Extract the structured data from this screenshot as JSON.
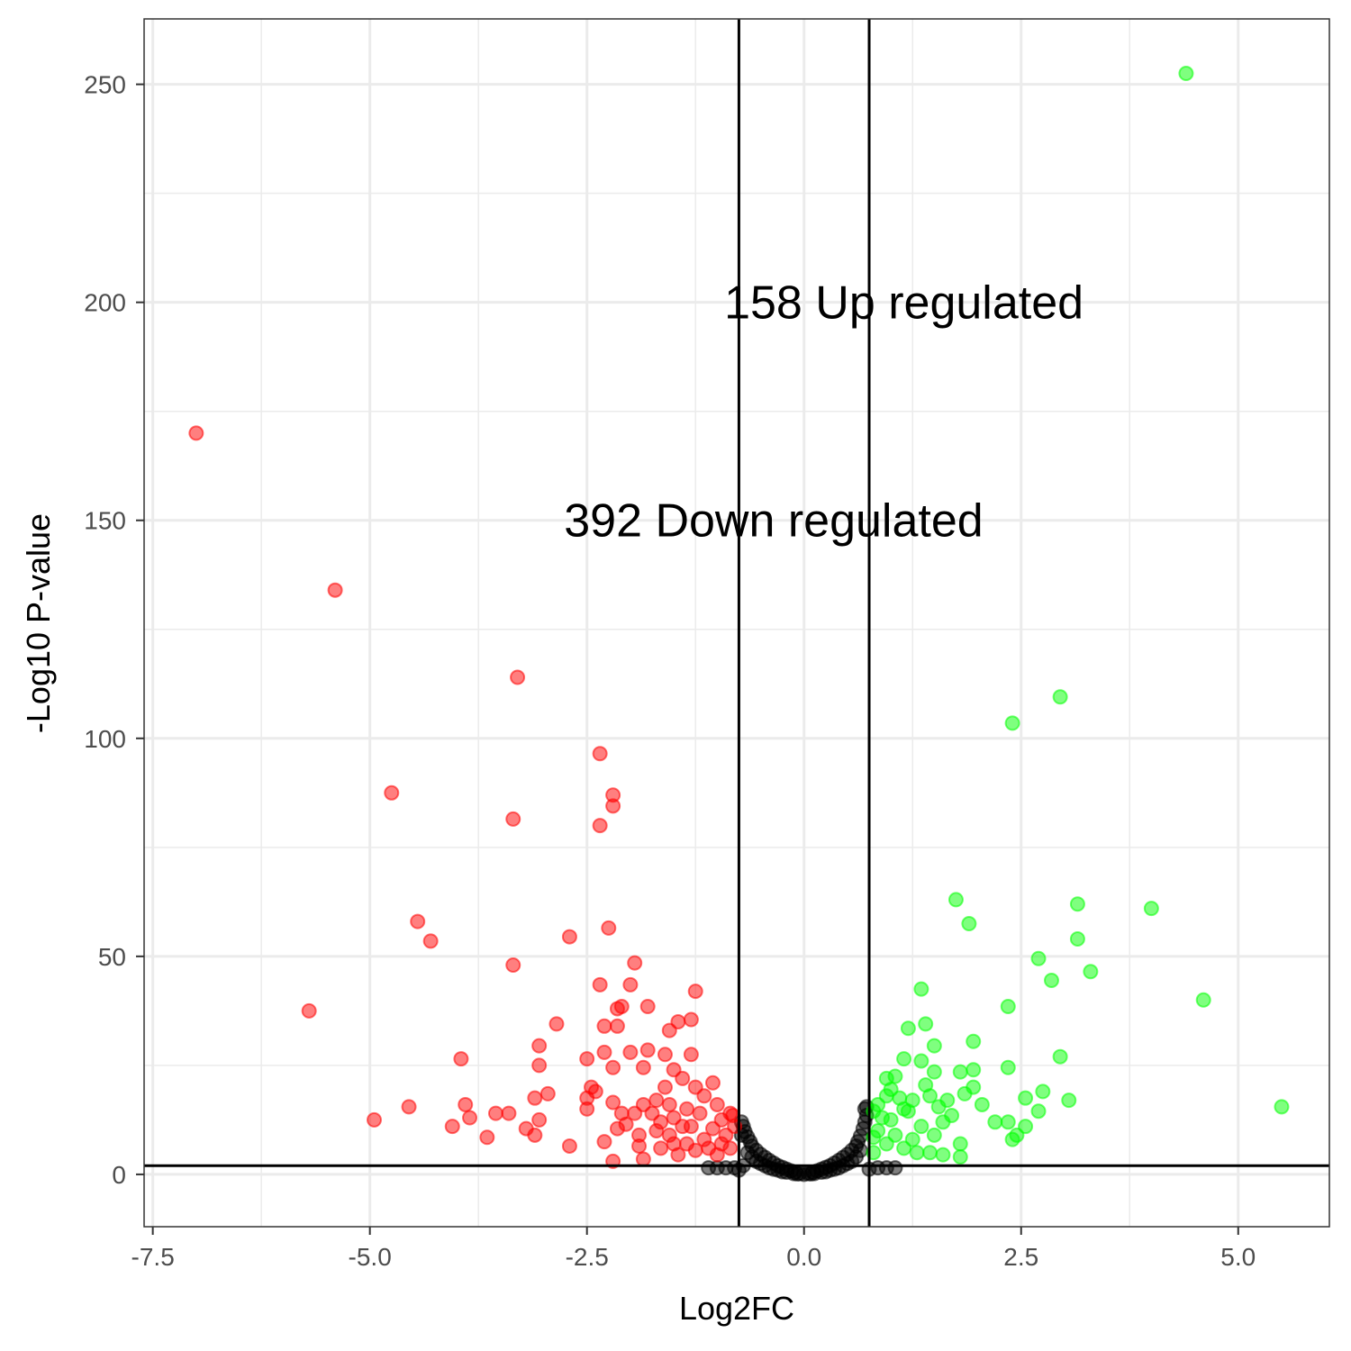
{
  "chart_data": {
    "type": "scatter",
    "title": "",
    "xlabel": "Log2FC",
    "ylabel": "-Log10 P-value",
    "xlim": [
      -7.6,
      6.05
    ],
    "ylim": [
      -12,
      265
    ],
    "x_ticks": [
      -7.5,
      -5.0,
      -2.5,
      0.0,
      2.5,
      5.0
    ],
    "x_tick_labels": [
      "-7.5",
      "-5.0",
      "-2.5",
      "0.0",
      "2.5",
      "5.0"
    ],
    "y_ticks": [
      0,
      50,
      100,
      150,
      200,
      250
    ],
    "y_tick_labels": [
      "0",
      "50",
      "100",
      "150",
      "200",
      "250"
    ],
    "grid": true,
    "legend": "none",
    "thresholds": {
      "x": [
        -0.75,
        0.75
      ],
      "y": [
        2
      ]
    },
    "colors": {
      "down": "#ff0000",
      "up": "#00ff00",
      "ns": "#000000",
      "lines": "#000000",
      "grid": "#ebebeb",
      "panel_border": "#333333"
    },
    "annotations": [
      {
        "text": "158 Up regulated",
        "x": 1.15,
        "y": 200
      },
      {
        "text": "392 Down regulated",
        "x": -0.35,
        "y": 150
      }
    ],
    "series": [
      {
        "group": "down",
        "points": [
          [
            -7.0,
            170
          ],
          [
            -5.4,
            134
          ],
          [
            -3.3,
            114
          ],
          [
            -4.75,
            87.5
          ],
          [
            -3.35,
            81.5
          ],
          [
            -2.35,
            96.5
          ],
          [
            -2.2,
            87
          ],
          [
            -2.2,
            84.5
          ],
          [
            -2.35,
            80
          ],
          [
            -4.45,
            58
          ],
          [
            -4.3,
            53.5
          ],
          [
            -2.25,
            56.5
          ],
          [
            -2.7,
            54.5
          ],
          [
            -3.35,
            48
          ],
          [
            -1.95,
            48.5
          ],
          [
            -2.35,
            43.5
          ],
          [
            -2.0,
            43.5
          ],
          [
            -1.25,
            42
          ],
          [
            -5.7,
            37.5
          ],
          [
            -2.15,
            38
          ],
          [
            -2.1,
            38.5
          ],
          [
            -1.8,
            38.5
          ],
          [
            -2.85,
            34.5
          ],
          [
            -2.3,
            34
          ],
          [
            -2.15,
            34
          ],
          [
            -1.3,
            35.5
          ],
          [
            -1.55,
            33
          ],
          [
            -1.45,
            35
          ],
          [
            -3.05,
            29.5
          ],
          [
            -3.05,
            25
          ],
          [
            -3.95,
            26.5
          ],
          [
            -2.5,
            26.5
          ],
          [
            -2.3,
            28
          ],
          [
            -2.0,
            28
          ],
          [
            -1.8,
            28.5
          ],
          [
            -1.6,
            27.5
          ],
          [
            -1.3,
            27.5
          ],
          [
            -2.2,
            24.5
          ],
          [
            -1.85,
            24.5
          ],
          [
            -1.5,
            24
          ],
          [
            -2.45,
            20
          ],
          [
            -2.4,
            19
          ],
          [
            -2.5,
            17.5
          ],
          [
            -2.5,
            15
          ],
          [
            -2.2,
            16.5
          ],
          [
            -2.1,
            14
          ],
          [
            -1.95,
            14
          ],
          [
            -1.85,
            16
          ],
          [
            -1.7,
            17
          ],
          [
            -2.95,
            18.5
          ],
          [
            -3.1,
            17.5
          ],
          [
            -3.9,
            16
          ],
          [
            -3.85,
            13
          ],
          [
            -4.55,
            15.5
          ],
          [
            -4.95,
            12.5
          ],
          [
            -4.05,
            11
          ],
          [
            -3.55,
            14
          ],
          [
            -3.4,
            14
          ],
          [
            -3.05,
            12.5
          ],
          [
            -3.2,
            10.5
          ],
          [
            -3.1,
            9
          ],
          [
            -3.65,
            8.5
          ],
          [
            -2.3,
            7.5
          ],
          [
            -2.7,
            6.5
          ],
          [
            -2.05,
            11.5
          ],
          [
            -2.15,
            10.5
          ],
          [
            -1.9,
            9
          ],
          [
            -1.9,
            6.5
          ],
          [
            -2.2,
            3
          ],
          [
            -1.65,
            6
          ],
          [
            -1.85,
            3.5
          ],
          [
            -1.45,
            4.5
          ],
          [
            -1.3,
            11
          ],
          [
            -1.05,
            21
          ],
          [
            -1.15,
            18
          ],
          [
            -1.35,
            15
          ],
          [
            -1.5,
            13
          ],
          [
            -1.4,
            11
          ],
          [
            -1.2,
            14
          ],
          [
            -1.05,
            10.5
          ],
          [
            -0.95,
            12.5
          ],
          [
            -0.9,
            9
          ],
          [
            -1.15,
            8
          ],
          [
            -1.35,
            7
          ],
          [
            -1.55,
            9
          ],
          [
            -1.65,
            12
          ],
          [
            -1.0,
            16
          ],
          [
            -0.85,
            14
          ],
          [
            -1.25,
            20
          ],
          [
            -1.4,
            22
          ],
          [
            -1.6,
            20
          ],
          [
            -1.55,
            16
          ],
          [
            -1.75,
            14
          ],
          [
            -1.7,
            10
          ],
          [
            -1.5,
            7
          ],
          [
            -1.25,
            5.5
          ],
          [
            -1.1,
            6
          ],
          [
            -0.95,
            7
          ],
          [
            -0.85,
            6
          ],
          [
            -0.8,
            11
          ],
          [
            -0.82,
            13.5
          ],
          [
            -1.0,
            4.5
          ]
        ]
      },
      {
        "group": "up",
        "points": [
          [
            4.4,
            252.5
          ],
          [
            2.95,
            109.5
          ],
          [
            2.4,
            103.5
          ],
          [
            1.75,
            63
          ],
          [
            1.9,
            57.5
          ],
          [
            3.15,
            62
          ],
          [
            4.0,
            61
          ],
          [
            3.15,
            54
          ],
          [
            2.7,
            49.5
          ],
          [
            3.3,
            46.5
          ],
          [
            2.85,
            44.5
          ],
          [
            1.35,
            42.5
          ],
          [
            4.6,
            40
          ],
          [
            2.35,
            38.5
          ],
          [
            1.2,
            33.5
          ],
          [
            1.4,
            34.5
          ],
          [
            1.95,
            30.5
          ],
          [
            1.5,
            29.5
          ],
          [
            2.95,
            27
          ],
          [
            1.15,
            26.5
          ],
          [
            1.35,
            26
          ],
          [
            1.8,
            23.5
          ],
          [
            1.95,
            24
          ],
          [
            2.35,
            24.5
          ],
          [
            1.05,
            22.5
          ],
          [
            1.5,
            23.5
          ],
          [
            0.95,
            22
          ],
          [
            2.75,
            19
          ],
          [
            2.55,
            17.5
          ],
          [
            3.05,
            17
          ],
          [
            5.5,
            15.5
          ],
          [
            2.05,
            16
          ],
          [
            2.7,
            14.5
          ],
          [
            1.25,
            17
          ],
          [
            1.45,
            18
          ],
          [
            1.65,
            17
          ],
          [
            1.85,
            18.5
          ],
          [
            1.95,
            20
          ],
          [
            1.15,
            15
          ],
          [
            1.55,
            15.5
          ],
          [
            1.7,
            13.5
          ],
          [
            2.2,
            12
          ],
          [
            2.35,
            12
          ],
          [
            2.55,
            11
          ],
          [
            2.45,
            9
          ],
          [
            2.4,
            8
          ],
          [
            1.35,
            11
          ],
          [
            1.6,
            12
          ],
          [
            1.0,
            12.5
          ],
          [
            0.9,
            13
          ],
          [
            0.85,
            16
          ],
          [
            0.95,
            18
          ],
          [
            1.1,
            17.5
          ],
          [
            1.2,
            14.5
          ],
          [
            0.85,
            10
          ],
          [
            1.05,
            9
          ],
          [
            0.95,
            7
          ],
          [
            1.15,
            6
          ],
          [
            1.3,
            5
          ],
          [
            1.45,
            5
          ],
          [
            1.6,
            4.5
          ],
          [
            1.8,
            4
          ],
          [
            1.8,
            7
          ],
          [
            1.5,
            9
          ],
          [
            1.25,
            8
          ],
          [
            0.8,
            5
          ],
          [
            0.8,
            8.5
          ],
          [
            0.8,
            14.5
          ],
          [
            1.0,
            19.5
          ],
          [
            1.4,
            20.5
          ]
        ]
      },
      {
        "group": "ns",
        "points": [
          [
            0.0,
            0
          ],
          [
            -0.05,
            0.2
          ],
          [
            0.05,
            0.2
          ],
          [
            -0.1,
            0.5
          ],
          [
            0.1,
            0.5
          ],
          [
            -0.15,
            0.8
          ],
          [
            0.15,
            0.8
          ],
          [
            -0.2,
            1.2
          ],
          [
            0.2,
            1.2
          ],
          [
            -0.25,
            1.6
          ],
          [
            0.25,
            1.6
          ],
          [
            -0.3,
            2.0
          ],
          [
            0.3,
            2.0
          ],
          [
            -0.35,
            2.6
          ],
          [
            0.35,
            2.6
          ],
          [
            -0.4,
            3.2
          ],
          [
            0.4,
            3.2
          ],
          [
            -0.45,
            3.9
          ],
          [
            0.45,
            3.9
          ],
          [
            -0.5,
            4.6
          ],
          [
            0.5,
            4.6
          ],
          [
            -0.55,
            5.5
          ],
          [
            0.55,
            5.5
          ],
          [
            -0.6,
            6.5
          ],
          [
            0.6,
            6.5
          ],
          [
            -0.62,
            7.5
          ],
          [
            0.62,
            7.5
          ],
          [
            -0.65,
            8.6
          ],
          [
            0.65,
            8.8
          ],
          [
            -0.68,
            9.8
          ],
          [
            0.68,
            10.5
          ],
          [
            -0.7,
            11
          ],
          [
            0.7,
            12
          ],
          [
            -0.72,
            12
          ],
          [
            0.72,
            13.5
          ],
          [
            0.7,
            15
          ],
          [
            0.72,
            15.5
          ],
          [
            -0.72,
            9
          ],
          [
            -0.6,
            4
          ],
          [
            0.6,
            4
          ],
          [
            -0.5,
            2.5
          ],
          [
            0.5,
            2.5
          ],
          [
            -0.4,
            1.5
          ],
          [
            0.4,
            1.5
          ],
          [
            -0.3,
            1.0
          ],
          [
            0.3,
            1.0
          ],
          [
            -0.2,
            0.5
          ],
          [
            0.2,
            0.5
          ],
          [
            -0.12,
            0.2
          ],
          [
            0.12,
            0.2
          ],
          [
            -0.7,
            2
          ],
          [
            -0.8,
            1.5
          ],
          [
            -0.9,
            1.5
          ],
          [
            -1.0,
            1.5
          ],
          [
            -1.1,
            1.5
          ],
          [
            -0.75,
            1
          ],
          [
            0.75,
            1.2
          ],
          [
            0.85,
            1.5
          ],
          [
            0.95,
            1.5
          ],
          [
            1.05,
            1.5
          ],
          [
            -0.65,
            5
          ],
          [
            0.65,
            5.5
          ],
          [
            -0.55,
            3
          ],
          [
            0.55,
            3
          ],
          [
            -0.45,
            2
          ],
          [
            0.45,
            2
          ],
          [
            -0.35,
            1.2
          ],
          [
            0.35,
            1.2
          ],
          [
            -0.25,
            0.6
          ],
          [
            0.25,
            0.6
          ],
          [
            -0.08,
            0.1
          ],
          [
            0.08,
            0.1
          ]
        ]
      }
    ]
  }
}
